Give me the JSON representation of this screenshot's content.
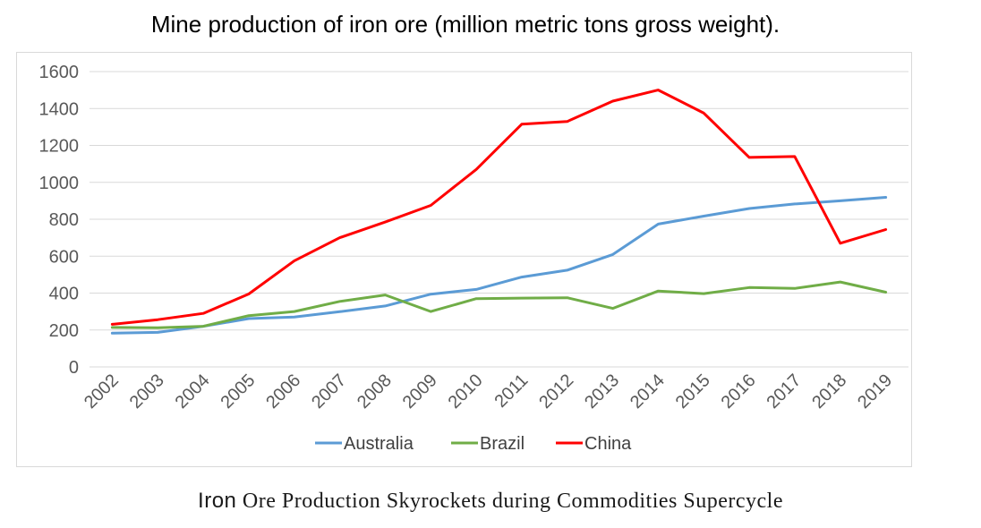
{
  "chart_data": {
    "type": "line",
    "title": "Mine production of iron ore (million metric tons gross weight).",
    "xlabel": "",
    "ylabel": "",
    "ylim": [
      0,
      1600
    ],
    "yticks": [
      0,
      200,
      400,
      600,
      800,
      1000,
      1200,
      1400,
      1600
    ],
    "grid": true,
    "legend": "bottom",
    "categories": [
      "2002",
      "2003",
      "2004",
      "2005",
      "2006",
      "2007",
      "2008",
      "2009",
      "2010",
      "2011",
      "2012",
      "2013",
      "2014",
      "2015",
      "2016",
      "2017",
      "2018",
      "2019"
    ],
    "series": [
      {
        "name": "Australia",
        "color": "#5b9bd5",
        "values": [
          183,
          187,
          220,
          262,
          270,
          299,
          330,
          394,
          420,
          487,
          524,
          609,
          774,
          817,
          858,
          883,
          900,
          919
        ]
      },
      {
        "name": "Brazil",
        "color": "#70ad47",
        "values": [
          214,
          212,
          220,
          278,
          300,
          355,
          390,
          300,
          370,
          373,
          375,
          317,
          411,
          397,
          430,
          425,
          460,
          405
        ]
      },
      {
        "name": "China",
        "color": "#ff0000",
        "values": [
          231,
          256,
          290,
          395,
          575,
          700,
          785,
          875,
          1070,
          1315,
          1330,
          1440,
          1500,
          1375,
          1135,
          1140,
          670,
          744
        ]
      }
    ]
  },
  "caption": {
    "part1": "Iron",
    "part2": " Ore Production Skyrockets during Commodities Supercycle"
  }
}
